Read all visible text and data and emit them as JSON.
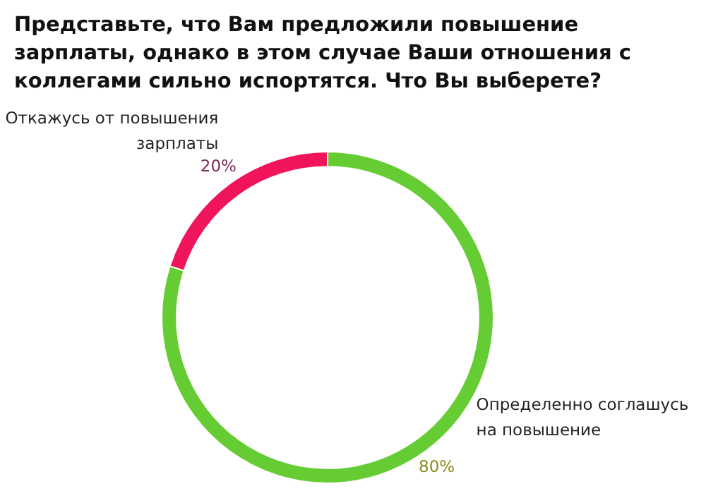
{
  "chart_data": {
    "type": "donut",
    "title": "Представьте, что Вам предложили повышение зарплаты, однако в этом случае Ваши отношения с коллегами сильно испортятся. Что Вы выберете?",
    "categories": [
      "Откажусь от повышения зарплаты",
      "Определенно соглашусь на повышение"
    ],
    "values": [
      20,
      80
    ],
    "colors": [
      "#f0145a",
      "#66cc33"
    ],
    "value_labels": [
      "20%",
      "80%"
    ],
    "legend": false
  }
}
